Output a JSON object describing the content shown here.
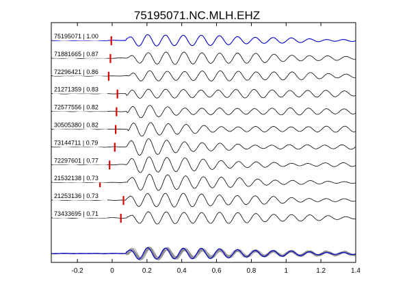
{
  "chart_data": {
    "type": "line",
    "title": "75195071.NC.MLH.EHZ",
    "xlabel": "",
    "ylabel": "",
    "xlim": [
      -0.35,
      1.4
    ],
    "xticks": [
      -0.2,
      0,
      0.2,
      0.4,
      0.6,
      0.8,
      1,
      1.2,
      1.4
    ],
    "xtick_labels": [
      "-0.2",
      "0",
      "0.2",
      "0.4",
      "0.6",
      "0.8",
      "1",
      "1.2",
      "1.4"
    ],
    "grid": false,
    "colors": {
      "reference": "#0000cc",
      "trace": "#000000",
      "marker": "#dd0000",
      "stack_gray": "#888888"
    },
    "series": [
      {
        "name": "75195071 | 1.00",
        "pick": -0.005,
        "ref": true
      },
      {
        "name": "71881665 | 0.87",
        "pick": -0.01
      },
      {
        "name": "72296421 | 0.86",
        "pick": -0.02
      },
      {
        "name": "21271359 | 0.83",
        "pick": 0.03
      },
      {
        "name": "72577556 | 0.82",
        "pick": 0.025
      },
      {
        "name": "30505380 | 0.82",
        "pick": 0.02
      },
      {
        "name": "73144711 | 0.79",
        "pick": 0.015
      },
      {
        "name": "72297601 | 0.77",
        "pick": -0.015
      },
      {
        "name": "21532138 | 0.73",
        "pick": -0.07
      },
      {
        "name": "21253136 | 0.73",
        "pick": 0.065
      },
      {
        "name": "73433695 | 0.71",
        "pick": 0.05
      }
    ]
  }
}
